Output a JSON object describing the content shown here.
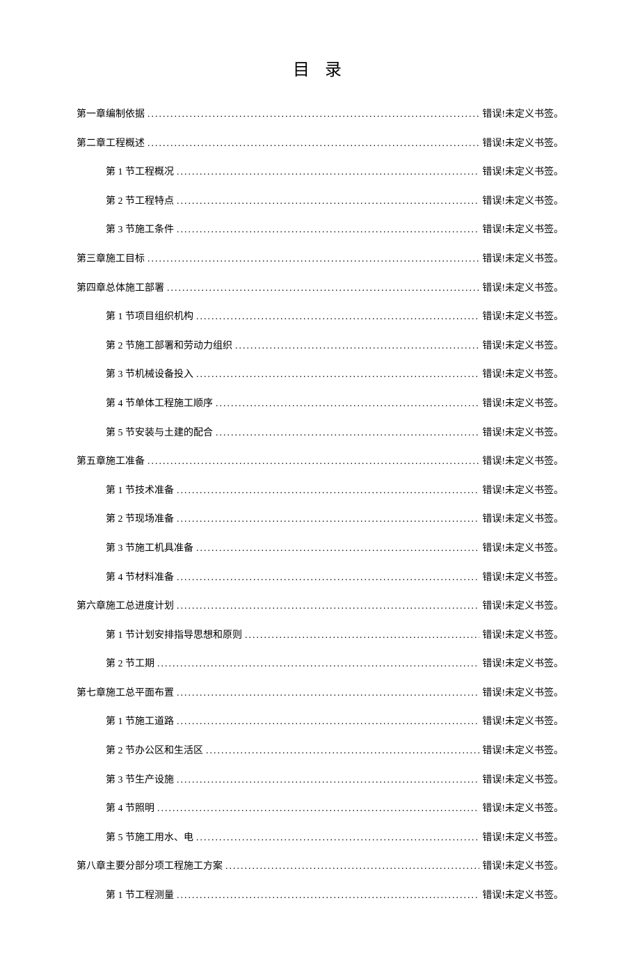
{
  "title": "目 录",
  "error_text": "错误!未定义书签。",
  "toc": [
    {
      "level": 1,
      "label": "第一章编制依据"
    },
    {
      "level": 1,
      "label": "第二章工程概述"
    },
    {
      "level": 2,
      "label": "第 1 节工程概况"
    },
    {
      "level": 2,
      "label": "第 2 节工程特点"
    },
    {
      "level": 2,
      "label": "第 3 节施工条件"
    },
    {
      "level": 1,
      "label": "第三章施工目标"
    },
    {
      "level": 1,
      "label": "第四章总体施工部署"
    },
    {
      "level": 2,
      "label": "第 1 节项目组织机构"
    },
    {
      "level": 2,
      "label": "第 2 节施工部署和劳动力组织"
    },
    {
      "level": 2,
      "label": "第 3 节机械设备投入"
    },
    {
      "level": 2,
      "label": "第 4 节单体工程施工顺序"
    },
    {
      "level": 2,
      "label": "第 5 节安装与土建的配合"
    },
    {
      "level": 1,
      "label": "第五章施工准备"
    },
    {
      "level": 2,
      "label": "第 1 节技术准备"
    },
    {
      "level": 2,
      "label": "第 2 节现场准备"
    },
    {
      "level": 2,
      "label": "第 3 节施工机具准备"
    },
    {
      "level": 2,
      "label": "第 4 节材料准备"
    },
    {
      "level": 1,
      "label": "第六章施工总进度计划"
    },
    {
      "level": 2,
      "label": "第 1 节计划安排指导思想和原则"
    },
    {
      "level": 2,
      "label": "第 2 节工期"
    },
    {
      "level": 1,
      "label": "第七章施工总平面布置"
    },
    {
      "level": 2,
      "label": "第 1 节施工道路"
    },
    {
      "level": 2,
      "label": "第 2 节办公区和生活区"
    },
    {
      "level": 2,
      "label": "第 3 节生产设施"
    },
    {
      "level": 2,
      "label": "第 4 节照明"
    },
    {
      "level": 2,
      "label": "第 5 节施工用水、电"
    },
    {
      "level": 1,
      "label": "第八章主要分部分项工程施工方案"
    },
    {
      "level": 2,
      "label": "第 1 节工程测量"
    }
  ]
}
